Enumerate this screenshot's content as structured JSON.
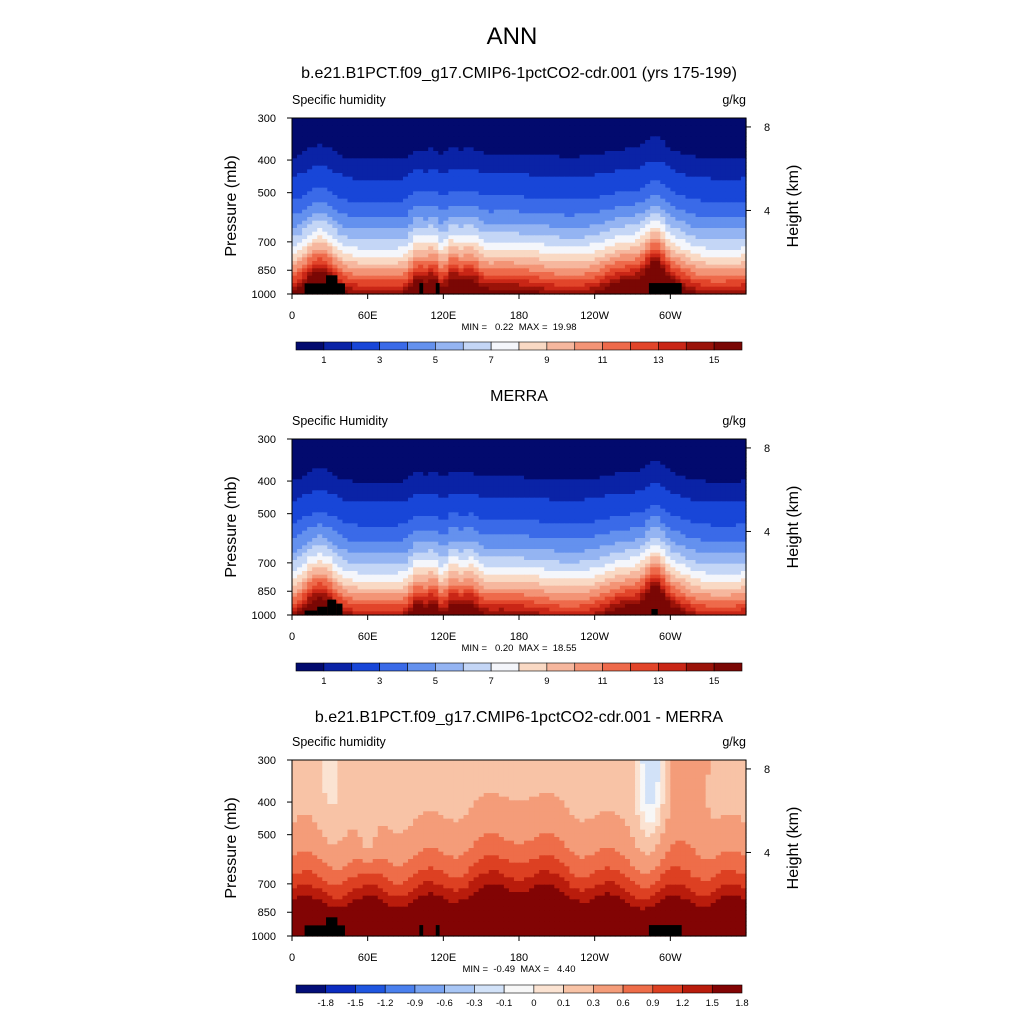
{
  "page_title": "ANN",
  "colors": {
    "cmap_15": [
      "#020a6e",
      "#0a23a6",
      "#1846d8",
      "#3a6ae8",
      "#6491ee",
      "#94b4f2",
      "#c4d6f6",
      "#f4f6fb",
      "#f9d9c4",
      "#f6b79e",
      "#f39476",
      "#ee6a4b",
      "#e2452a",
      "#c92616",
      "#9a1309",
      "#7a0704"
    ],
    "cmap_diff": [
      "#030e78",
      "#0b2cc0",
      "#1f56e0",
      "#4a80ee",
      "#7aa5f2",
      "#a8c6f5",
      "#d2e2f8",
      "#f7f7f7",
      "#fbe3d2",
      "#f8c3a6",
      "#f49c79",
      "#ee6d49",
      "#dd4022",
      "#b91c0c",
      "#820404"
    ],
    "land": "#000000"
  },
  "chart_data": [
    {
      "type": "heatmap",
      "title": "b.e21.B1PCT.f09_g17.CMIP6-1pctCO2-cdr.001 (yrs 175-199)",
      "left_label": "Specific humidity",
      "right_label": "g/kg",
      "xlabel": "",
      "ylabel": "Pressure (mb)",
      "ylabel_right": "Height (km)",
      "x_ticks": [
        "0",
        "60E",
        "120E",
        "180",
        "120W",
        "60W"
      ],
      "x_tick_values": [
        0,
        60,
        120,
        180,
        240,
        300
      ],
      "xlim": [
        0,
        360
      ],
      "y_ticks": [
        "300",
        "400",
        "500",
        "700",
        "850",
        "1000"
      ],
      "y_tick_values": [
        300,
        400,
        500,
        700,
        850,
        1000
      ],
      "ylim": [
        300,
        1000
      ],
      "right_ticks": [
        "8",
        "4"
      ],
      "right_tick_values": [
        8,
        4
      ],
      "stats": "MIN =   0.22  MAX =  19.98",
      "min": 0.22,
      "max": 19.98,
      "field": "abs",
      "colorbar_labels": [
        "1",
        "3",
        "5",
        "7",
        "9",
        "11",
        "13",
        "15"
      ],
      "colorbar_levels": [
        0.5,
        1,
        2,
        3,
        4,
        5,
        6,
        7,
        8,
        9,
        10,
        11,
        12,
        13,
        14,
        15
      ],
      "land": [
        {
          "lon0": 10,
          "lon1": 42,
          "p": 930
        },
        {
          "lon0": 27,
          "lon1": 36,
          "p": 880
        },
        {
          "lon0": 101,
          "lon1": 104,
          "p": 928
        },
        {
          "lon0": 114,
          "lon1": 117,
          "p": 928
        },
        {
          "lon0": 283,
          "lon1": 309,
          "p": 928
        }
      ]
    },
    {
      "type": "heatmap",
      "title": "MERRA",
      "left_label": "Specific Humidity",
      "right_label": "g/kg",
      "xlabel": "",
      "ylabel": "Pressure (mb)",
      "ylabel_right": "Height (km)",
      "x_ticks": [
        "0",
        "60E",
        "120E",
        "180",
        "120W",
        "60W"
      ],
      "x_tick_values": [
        0,
        60,
        120,
        180,
        240,
        300
      ],
      "xlim": [
        0,
        360
      ],
      "y_ticks": [
        "300",
        "400",
        "500",
        "700",
        "850",
        "1000"
      ],
      "y_tick_values": [
        300,
        400,
        500,
        700,
        850,
        1000
      ],
      "ylim": [
        300,
        1000
      ],
      "right_ticks": [
        "8",
        "4"
      ],
      "right_tick_values": [
        8,
        4
      ],
      "stats": "MIN =   0.20  MAX =  18.55",
      "min": 0.2,
      "max": 18.55,
      "field": "abs",
      "colorbar_labels": [
        "1",
        "3",
        "5",
        "7",
        "9",
        "11",
        "13",
        "15"
      ],
      "colorbar_levels": [
        0.5,
        1,
        2,
        3,
        4,
        5,
        6,
        7,
        8,
        9,
        10,
        11,
        12,
        13,
        14,
        15
      ],
      "land": [
        {
          "lon0": 10,
          "lon1": 20,
          "p": 970
        },
        {
          "lon0": 20,
          "lon1": 28,
          "p": 945
        },
        {
          "lon0": 28,
          "lon1": 35,
          "p": 900
        },
        {
          "lon0": 35,
          "lon1": 40,
          "p": 925
        },
        {
          "lon0": 285,
          "lon1": 290,
          "p": 960
        }
      ]
    },
    {
      "type": "heatmap",
      "title": "b.e21.B1PCT.f09_g17.CMIP6-1pctCO2-cdr.001 - MERRA",
      "left_label": "Specific humidity",
      "right_label": "g/kg",
      "xlabel": "",
      "ylabel": "Pressure (mb)",
      "ylabel_right": "Height (km)",
      "x_ticks": [
        "0",
        "60E",
        "120E",
        "180",
        "120W",
        "60W"
      ],
      "x_tick_values": [
        0,
        60,
        120,
        180,
        240,
        300
      ],
      "xlim": [
        0,
        360
      ],
      "y_ticks": [
        "300",
        "400",
        "500",
        "700",
        "850",
        "1000"
      ],
      "y_tick_values": [
        300,
        400,
        500,
        700,
        850,
        1000
      ],
      "ylim": [
        300,
        1000
      ],
      "right_ticks": [
        "8",
        "4"
      ],
      "right_tick_values": [
        8,
        4
      ],
      "stats": "MIN =  -0.49  MAX =   4.40",
      "min": -0.49,
      "max": 4.4,
      "field": "diff",
      "colorbar_labels": [
        "-1.8",
        "-1.5",
        "-1.2",
        "-0.9",
        "-0.6",
        "-0.3",
        "-0.1",
        "0",
        "0.1",
        "0.3",
        "0.6",
        "0.9",
        "1.2",
        "1.5",
        "1.8"
      ],
      "colorbar_levels": [
        -1.8,
        -1.5,
        -1.2,
        -0.9,
        -0.6,
        -0.3,
        -0.1,
        0,
        0.1,
        0.3,
        0.6,
        0.9,
        1.2,
        1.5,
        1.8
      ],
      "land": [
        {
          "lon0": 10,
          "lon1": 42,
          "p": 930
        },
        {
          "lon0": 27,
          "lon1": 36,
          "p": 880
        },
        {
          "lon0": 101,
          "lon1": 104,
          "p": 928
        },
        {
          "lon0": 114,
          "lon1": 117,
          "p": 928
        },
        {
          "lon0": 283,
          "lon1": 309,
          "p": 928
        }
      ]
    }
  ]
}
